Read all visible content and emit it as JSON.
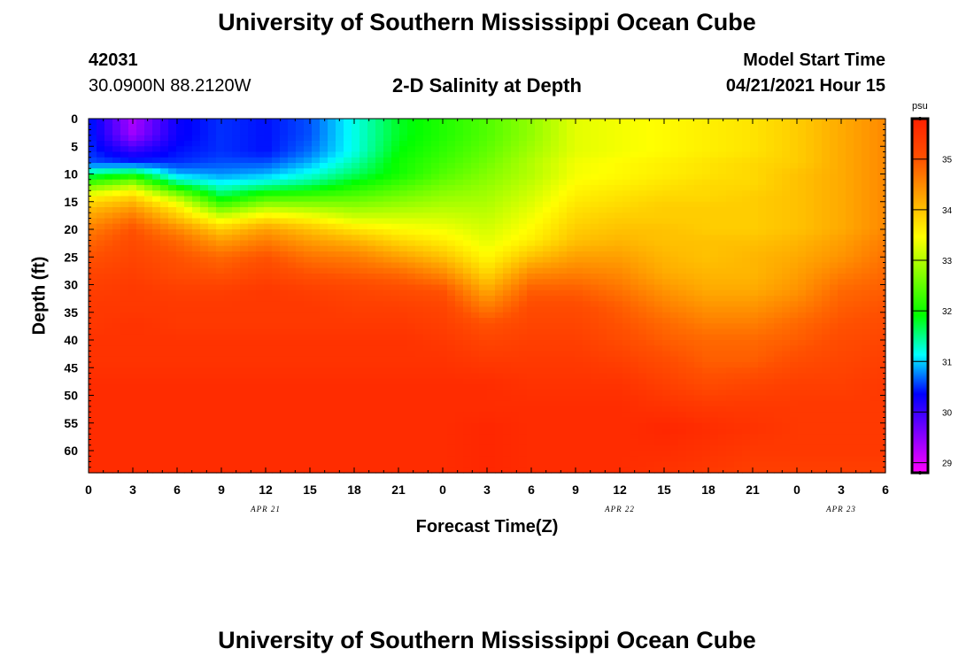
{
  "page": {
    "title": "University of Southern Mississippi Ocean Cube",
    "footer_title": "University of Southern Mississippi Ocean Cube",
    "station_id": "42031",
    "coordinates": "30.0900N  88.2120W",
    "subtitle": "2-D Salinity at Depth",
    "model_start_label": "Model Start Time",
    "model_start_value": "04/21/2021 Hour 15"
  },
  "chart_data": {
    "type": "heatmap",
    "title": "2-D Salinity at Depth",
    "xlabel": "Forecast Time(Z)",
    "ylabel": "Depth (ft)",
    "x_ticks": [
      "0",
      "3",
      "6",
      "9",
      "12",
      "15",
      "18",
      "21",
      "0",
      "3",
      "6",
      "9",
      "12",
      "15",
      "18",
      "21",
      "0",
      "3",
      "6"
    ],
    "x_hours": [
      0,
      3,
      6,
      9,
      12,
      15,
      18,
      21,
      24,
      27,
      30,
      33,
      36,
      39,
      42,
      45,
      48,
      51,
      54
    ],
    "x_range": [
      0,
      54
    ],
    "date_labels": [
      {
        "text": "APR 21",
        "hour": 12
      },
      {
        "text": "APR 22",
        "hour": 36
      },
      {
        "text": "APR 23",
        "hour": 51
      }
    ],
    "y_ticks": [
      0,
      5,
      10,
      15,
      20,
      25,
      30,
      35,
      40,
      45,
      50,
      55,
      60
    ],
    "y_range": [
      0,
      64
    ],
    "y_inverted": true,
    "colorbar": {
      "unit": "psu",
      "range": [
        28.8,
        35.8
      ],
      "ticks": [
        29,
        30,
        31,
        32,
        33,
        34,
        35
      ],
      "colors": [
        "#ff00ff",
        "#8000ff",
        "#0000ff",
        "#00ffff",
        "#00ff00",
        "#80ff00",
        "#ffff00",
        "#ffa500",
        "#ff5000",
        "#ff2000"
      ]
    },
    "depth_levels": [
      0,
      3,
      6,
      8,
      10,
      12,
      14,
      16,
      18,
      20,
      22,
      25,
      28,
      31,
      34,
      37,
      40,
      44,
      48,
      52,
      56,
      60,
      64
    ],
    "profiles": [
      {
        "hour": 0,
        "values": [
          30.5,
          30.5,
          30.5,
          30.6,
          31.5,
          32.5,
          33.5,
          34.0,
          34.3,
          34.6,
          34.8,
          35.0,
          35.2,
          35.3,
          35.4,
          35.4,
          35.5,
          35.5,
          35.6,
          35.6,
          35.6,
          35.6,
          35.6
        ]
      },
      {
        "hour": 3,
        "values": [
          29.3,
          29.4,
          30.1,
          30.5,
          31.8,
          33.0,
          33.8,
          34.3,
          34.7,
          35.0,
          35.1,
          35.2,
          35.3,
          35.4,
          35.4,
          35.5,
          35.5,
          35.5,
          35.6,
          35.6,
          35.6,
          35.6,
          35.6
        ]
      },
      {
        "hour": 6,
        "values": [
          30.3,
          30.3,
          30.4,
          30.5,
          30.9,
          31.7,
          32.9,
          33.6,
          34.0,
          34.5,
          34.8,
          35.0,
          35.1,
          35.3,
          35.4,
          35.4,
          35.5,
          35.5,
          35.6,
          35.6,
          35.6,
          35.6,
          35.6
        ]
      },
      {
        "hour": 9,
        "values": [
          30.5,
          30.5,
          30.5,
          30.6,
          30.8,
          31.2,
          31.7,
          32.5,
          33.3,
          33.9,
          34.3,
          34.8,
          35.0,
          35.3,
          35.4,
          35.4,
          35.5,
          35.5,
          35.6,
          35.6,
          35.6,
          35.6,
          35.6
        ]
      },
      {
        "hour": 12,
        "values": [
          30.4,
          30.4,
          30.4,
          30.6,
          30.9,
          31.4,
          32.2,
          33.0,
          33.7,
          34.3,
          34.6,
          35.0,
          35.2,
          35.4,
          35.4,
          35.4,
          35.5,
          35.5,
          35.6,
          35.6,
          35.6,
          35.6,
          35.6
        ]
      },
      {
        "hour": 15,
        "values": [
          30.6,
          30.6,
          30.7,
          30.9,
          31.2,
          31.6,
          32.3,
          32.9,
          33.5,
          34.0,
          34.3,
          34.7,
          35.0,
          35.3,
          35.4,
          35.4,
          35.5,
          35.5,
          35.6,
          35.6,
          35.6,
          35.6,
          35.6
        ]
      },
      {
        "hour": 18,
        "values": [
          31.2,
          31.2,
          31.2,
          31.4,
          31.6,
          32.0,
          32.4,
          32.8,
          33.2,
          33.7,
          34.1,
          34.6,
          34.9,
          35.2,
          35.3,
          35.4,
          35.5,
          35.5,
          35.6,
          35.6,
          35.6,
          35.6,
          35.6
        ]
      },
      {
        "hour": 21,
        "values": [
          31.8,
          31.8,
          31.9,
          32.0,
          32.0,
          32.3,
          32.6,
          32.9,
          33.2,
          33.5,
          33.8,
          34.3,
          34.8,
          35.1,
          35.3,
          35.4,
          35.5,
          35.5,
          35.6,
          35.6,
          35.6,
          35.6,
          35.6
        ]
      },
      {
        "hour": 24,
        "values": [
          32.1,
          32.1,
          32.2,
          32.3,
          32.4,
          32.6,
          32.8,
          33.0,
          33.2,
          33.4,
          33.6,
          34.0,
          34.5,
          35.0,
          35.2,
          35.3,
          35.4,
          35.5,
          35.6,
          35.6,
          35.6,
          35.6,
          35.6
        ]
      },
      {
        "hour": 27,
        "values": [
          32.4,
          32.4,
          32.5,
          32.6,
          32.7,
          32.8,
          32.9,
          33.0,
          33.1,
          33.2,
          33.3,
          33.5,
          33.8,
          34.2,
          34.6,
          35.0,
          35.2,
          35.4,
          35.6,
          35.6,
          35.7,
          35.7,
          35.7
        ]
      },
      {
        "hour": 30,
        "values": [
          32.8,
          32.8,
          32.9,
          33.0,
          33.0,
          33.1,
          33.2,
          33.3,
          33.4,
          33.5,
          33.6,
          34.0,
          34.5,
          34.9,
          35.1,
          35.2,
          35.3,
          35.4,
          35.5,
          35.6,
          35.6,
          35.6,
          35.6
        ]
      },
      {
        "hour": 33,
        "values": [
          33.3,
          33.3,
          33.3,
          33.4,
          33.4,
          33.5,
          33.6,
          33.7,
          33.8,
          33.9,
          34.0,
          34.3,
          34.6,
          34.9,
          35.1,
          35.2,
          35.3,
          35.4,
          35.5,
          35.6,
          35.6,
          35.6,
          35.6
        ]
      },
      {
        "hour": 36,
        "values": [
          33.4,
          33.4,
          33.4,
          33.5,
          33.5,
          33.6,
          33.7,
          33.8,
          33.9,
          34.0,
          34.1,
          34.3,
          34.5,
          34.7,
          34.9,
          35.0,
          35.1,
          35.3,
          35.5,
          35.6,
          35.6,
          35.6,
          35.6
        ]
      },
      {
        "hour": 39,
        "values": [
          33.5,
          33.5,
          33.5,
          33.6,
          33.6,
          33.7,
          33.8,
          33.9,
          33.9,
          34.0,
          34.0,
          34.1,
          34.2,
          34.4,
          34.6,
          34.8,
          34.9,
          35.1,
          35.3,
          35.5,
          35.7,
          35.6,
          35.5
        ]
      },
      {
        "hour": 42,
        "values": [
          33.6,
          33.6,
          33.6,
          33.7,
          33.7,
          33.8,
          33.8,
          33.9,
          33.9,
          33.9,
          34.0,
          34.0,
          34.1,
          34.2,
          34.4,
          34.6,
          34.8,
          34.9,
          35.1,
          35.4,
          35.6,
          35.5,
          35.4
        ]
      },
      {
        "hour": 45,
        "values": [
          33.7,
          33.7,
          33.7,
          33.8,
          33.8,
          33.8,
          33.9,
          33.9,
          33.9,
          33.9,
          34.0,
          34.1,
          34.1,
          34.2,
          34.4,
          34.6,
          34.8,
          34.9,
          35.2,
          35.4,
          35.5,
          35.4,
          35.3
        ]
      },
      {
        "hour": 48,
        "values": [
          33.9,
          33.9,
          33.9,
          33.9,
          34.0,
          34.0,
          34.0,
          34.0,
          34.0,
          34.0,
          34.1,
          34.2,
          34.3,
          34.4,
          34.6,
          34.8,
          34.9,
          35.1,
          35.3,
          35.4,
          35.4,
          35.4,
          35.3
        ]
      },
      {
        "hour": 51,
        "values": [
          34.2,
          34.2,
          34.2,
          34.2,
          34.2,
          34.2,
          34.2,
          34.2,
          34.2,
          34.2,
          34.3,
          34.4,
          34.6,
          34.8,
          34.9,
          35.0,
          35.1,
          35.2,
          35.3,
          35.4,
          35.4,
          35.4,
          35.3
        ]
      },
      {
        "hour": 54,
        "values": [
          34.5,
          34.5,
          34.5,
          34.5,
          34.5,
          34.5,
          34.5,
          34.5,
          34.5,
          34.5,
          34.6,
          34.7,
          34.8,
          34.9,
          35.0,
          35.1,
          35.2,
          35.3,
          35.4,
          35.4,
          35.4,
          35.4,
          35.3
        ]
      }
    ]
  }
}
